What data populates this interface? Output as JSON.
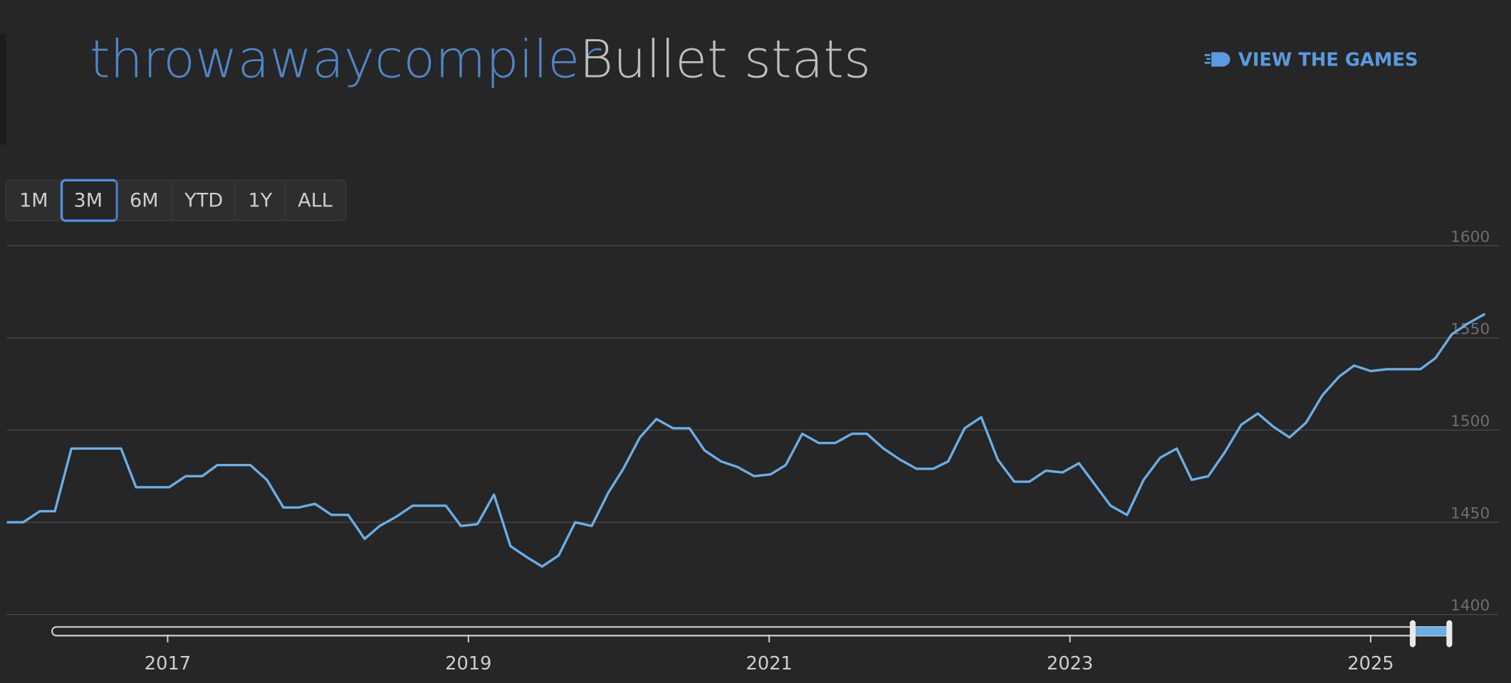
{
  "header": {
    "username": "throwawaycompiler",
    "title": "Bullet stats",
    "link": "VIEW THE GAMES"
  },
  "range_selector": {
    "buttons": [
      "1M",
      "3M",
      "6M",
      "YTD",
      "1Y",
      "ALL"
    ],
    "selected": 1
  },
  "chart_data": {
    "type": "line",
    "x": [
      2015.93,
      2016.04,
      2016.15,
      2016.25,
      2016.36,
      2016.47,
      2016.58,
      2016.69,
      2016.79,
      2016.9,
      2017.01,
      2017.12,
      2017.23,
      2017.33,
      2017.44,
      2017.55,
      2017.66,
      2017.77,
      2017.87,
      2017.98,
      2018.09,
      2018.2,
      2018.31,
      2018.41,
      2018.52,
      2018.63,
      2018.74,
      2018.85,
      2018.95,
      2019.06,
      2019.17,
      2019.28,
      2019.39,
      2019.49,
      2019.6,
      2019.71,
      2019.82,
      2019.93,
      2020.03,
      2020.14,
      2020.25,
      2020.36,
      2020.47,
      2020.57,
      2020.68,
      2020.79,
      2020.9,
      2021.01,
      2021.11,
      2021.22,
      2021.33,
      2021.44,
      2021.55,
      2021.65,
      2021.76,
      2021.87,
      2021.98,
      2022.09,
      2022.19,
      2022.3,
      2022.41,
      2022.52,
      2022.63,
      2022.73,
      2022.84,
      2022.95,
      2023.06,
      2023.17,
      2023.27,
      2023.38,
      2023.49,
      2023.6,
      2023.71,
      2023.81,
      2023.92,
      2024.03,
      2024.14,
      2024.25,
      2024.35,
      2024.46,
      2024.57,
      2024.68,
      2024.79,
      2024.89,
      2025.0,
      2025.11,
      2025.22,
      2025.33,
      2025.43,
      2025.54,
      2025.65,
      2025.76
    ],
    "series": [
      {
        "color": "#6aaee6",
        "values": [
          1450,
          1450,
          1456,
          1456,
          1490,
          1490,
          1490,
          1490,
          1469,
          1469,
          1469,
          1475,
          1475,
          1481,
          1481,
          1481,
          1473,
          1458,
          1458,
          1460,
          1454,
          1454,
          1441,
          1448,
          1453,
          1459,
          1459,
          1459,
          1448,
          1449,
          1465,
          1437,
          1431,
          1426,
          1432,
          1450,
          1448,
          1466,
          1479,
          1496,
          1506,
          1501,
          1501,
          1489,
          1483,
          1480,
          1475,
          1476,
          1481,
          1498,
          1493,
          1493,
          1498,
          1498,
          1490,
          1484,
          1479,
          1479,
          1483,
          1501,
          1507,
          1484,
          1472,
          1472,
          1478,
          1477,
          1482,
          1470,
          1459,
          1454,
          1473,
          1485,
          1490,
          1473,
          1475,
          1488,
          1503,
          1509,
          1502,
          1496,
          1504,
          1519,
          1529,
          1535,
          1532,
          1533,
          1533,
          1533,
          1539,
          1552,
          1558,
          1563
        ]
      }
    ],
    "xlim": [
      2015.93,
      2025.76
    ],
    "xticks": [
      2017,
      2019,
      2021,
      2023,
      2025
    ],
    "ylim": [
      1400,
      1600
    ],
    "yticks": [
      1400,
      1450,
      1500,
      1550,
      1600
    ],
    "grid": true
  }
}
